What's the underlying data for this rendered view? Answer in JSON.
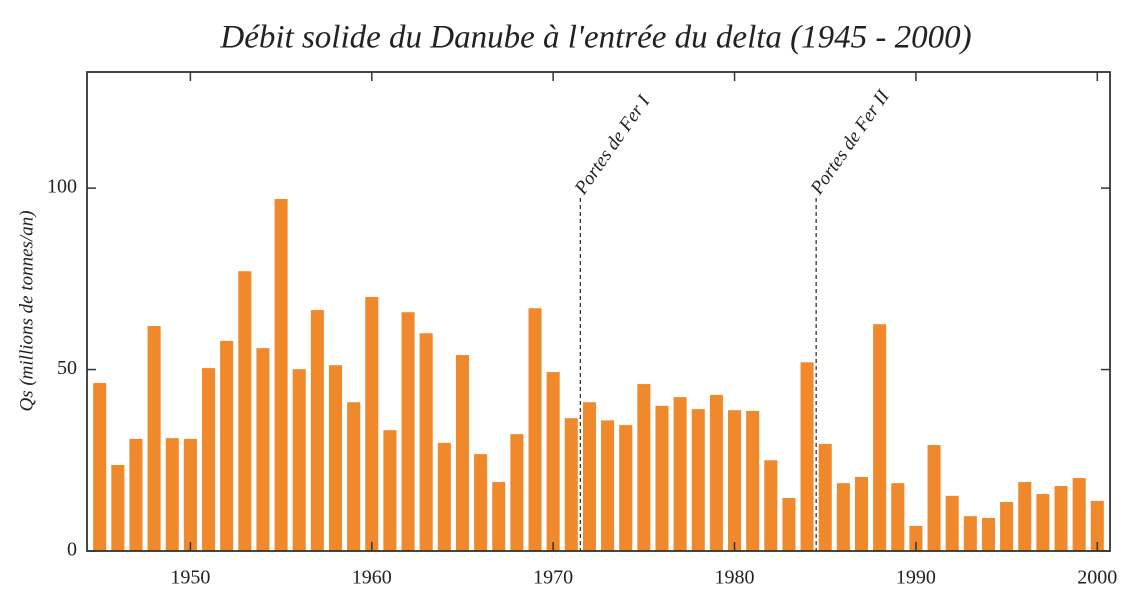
{
  "chart_data": {
    "type": "bar",
    "title": "Débit solide du Danube à l'entrée du delta (1945 - 2000)",
    "ylabel": "Qs (millions de tonnes/an)",
    "x": [
      1945,
      1946,
      1947,
      1948,
      1949,
      1950,
      1951,
      1952,
      1953,
      1954,
      1955,
      1956,
      1957,
      1958,
      1959,
      1960,
      1961,
      1962,
      1963,
      1964,
      1965,
      1966,
      1967,
      1968,
      1969,
      1970,
      1971,
      1972,
      1973,
      1974,
      1975,
      1976,
      1977,
      1978,
      1979,
      1980,
      1981,
      1982,
      1983,
      1984,
      1985,
      1986,
      1987,
      1988,
      1989,
      1990,
      1991,
      1992,
      1993,
      1994,
      1995,
      1996,
      1997,
      1998,
      1999,
      2000
    ],
    "values": [
      46.3,
      23.7,
      30.9,
      62,
      31.1,
      30.9,
      50.4,
      57.9,
      77.1,
      55.9,
      97,
      50.1,
      66.4,
      51.2,
      41,
      70,
      33.3,
      65.8,
      60,
      29.8,
      54,
      26.7,
      19,
      32.2,
      66.9,
      49.3,
      36.6,
      41,
      36,
      34.7,
      46,
      40,
      42.4,
      39.1,
      43,
      38.8,
      38.6,
      25,
      14.6,
      52,
      29.5,
      18.7,
      20.4,
      62.5,
      18.7,
      6.9,
      29.2,
      15.2,
      9.6,
      9.1,
      13.5,
      19,
      15.7,
      17.9,
      20.1,
      13.8
    ],
    "color": "#f0892c",
    "xlim": [
      1944.3,
      2000.7
    ],
    "ylim": [
      0,
      132
    ],
    "xticks": [
      1950,
      1960,
      1970,
      1980,
      1990,
      2000
    ],
    "yticks": [
      0,
      50,
      100
    ],
    "grid": false,
    "annotations": [
      {
        "x": 1971.5,
        "label": "Portes de Fer I"
      },
      {
        "x": 1984.5,
        "label": "Portes de Fer II"
      }
    ]
  }
}
